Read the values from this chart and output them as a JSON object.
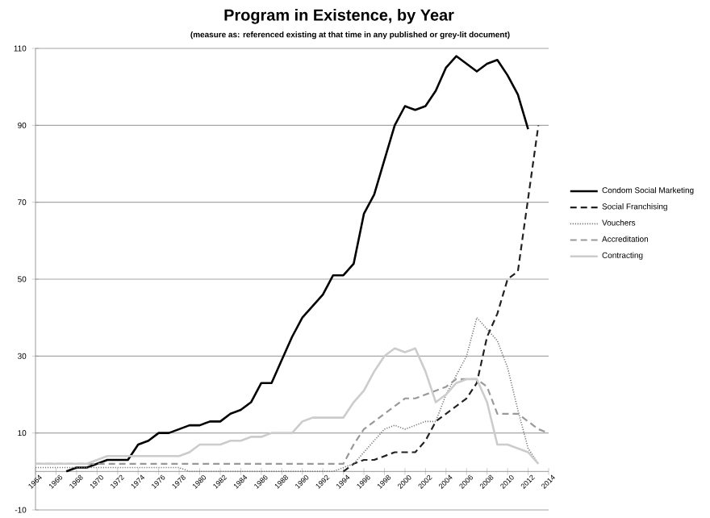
{
  "chart_data": {
    "type": "line",
    "title": "Program in Existence, by Year",
    "subtitle": "(measure as: referenced existing at that time in any published or grey-lit document)",
    "x": [
      1964,
      1965,
      1966,
      1967,
      1968,
      1969,
      1970,
      1971,
      1972,
      1973,
      1974,
      1975,
      1976,
      1977,
      1978,
      1979,
      1980,
      1981,
      1982,
      1983,
      1984,
      1985,
      1986,
      1987,
      1988,
      1989,
      1990,
      1991,
      1992,
      1993,
      1994,
      1995,
      1996,
      1997,
      1998,
      1999,
      2000,
      2001,
      2002,
      2003,
      2004,
      2005,
      2006,
      2007,
      2008,
      2009,
      2010,
      2011,
      2012,
      2013,
      2014
    ],
    "xlim": [
      1964,
      2014
    ],
    "xticks": [
      1964,
      1966,
      1968,
      1970,
      1972,
      1974,
      1976,
      1978,
      1980,
      1982,
      1984,
      1986,
      1988,
      1990,
      1992,
      1994,
      1996,
      1998,
      2000,
      2002,
      2004,
      2006,
      2008,
      2010,
      2012,
      2014
    ],
    "ylim": [
      -10,
      110
    ],
    "yticks": [
      -10,
      10,
      30,
      50,
      70,
      90,
      110
    ],
    "grid": "y",
    "legend": "right",
    "series": [
      {
        "name": "Condom Social Marketing",
        "color": "#000000",
        "line_style": "solid",
        "values": [
          null,
          null,
          null,
          0,
          1,
          1,
          2,
          3,
          3,
          3,
          7,
          8,
          10,
          10,
          11,
          12,
          12,
          13,
          13,
          15,
          16,
          18,
          23,
          23,
          29,
          35,
          40,
          43,
          46,
          51,
          51,
          54,
          67,
          72,
          81,
          90,
          95,
          94,
          95,
          99,
          105,
          108,
          106,
          104,
          106,
          107,
          103,
          98,
          89,
          null,
          null
        ]
      },
      {
        "name": "Social Franchising",
        "color": "#222222",
        "line_style": "dashed",
        "values": [
          null,
          null,
          null,
          null,
          null,
          null,
          null,
          null,
          null,
          null,
          null,
          null,
          null,
          null,
          null,
          null,
          null,
          null,
          null,
          null,
          null,
          null,
          null,
          null,
          null,
          null,
          null,
          null,
          null,
          null,
          0,
          2,
          3,
          3,
          4,
          5,
          5,
          5,
          8,
          13,
          15,
          17,
          19,
          23,
          35,
          41,
          50,
          52,
          71,
          90,
          null
        ]
      },
      {
        "name": "Vouchers",
        "color": "#777777",
        "line_style": "dotted",
        "values": [
          1,
          1,
          1,
          1,
          1,
          1,
          1,
          1,
          1,
          1,
          1,
          1,
          1,
          1,
          1,
          0,
          0,
          0,
          0,
          0,
          0,
          0,
          0,
          0,
          0,
          0,
          0,
          0,
          0,
          0,
          1,
          2,
          5,
          8,
          11,
          12,
          11,
          12,
          13,
          13,
          20,
          25,
          30,
          40,
          37,
          34,
          27,
          16,
          6,
          2,
          null
        ]
      },
      {
        "name": "Accreditation",
        "color": "#999999",
        "line_style": "dashed",
        "values": [
          2,
          2,
          2,
          2,
          2,
          2,
          2,
          2,
          2,
          2,
          2,
          2,
          2,
          2,
          2,
          2,
          2,
          2,
          2,
          2,
          2,
          2,
          2,
          2,
          2,
          2,
          2,
          2,
          2,
          2,
          2,
          7,
          11,
          13,
          15,
          17,
          19,
          19,
          20,
          21,
          22,
          24,
          24,
          24,
          22,
          15,
          15,
          15,
          13,
          11,
          10
        ]
      },
      {
        "name": "Contracting",
        "color": "#cccccc",
        "line_style": "solid",
        "values": [
          2,
          2,
          2,
          2,
          2,
          2,
          3,
          4,
          4,
          4,
          4,
          4,
          4,
          4,
          4,
          5,
          7,
          7,
          7,
          8,
          8,
          9,
          9,
          10,
          10,
          10,
          13,
          14,
          14,
          14,
          14,
          18,
          21,
          26,
          30,
          32,
          31,
          32,
          26,
          18,
          20,
          23,
          24,
          24,
          18,
          7,
          7,
          6,
          5,
          2,
          null
        ]
      }
    ]
  }
}
